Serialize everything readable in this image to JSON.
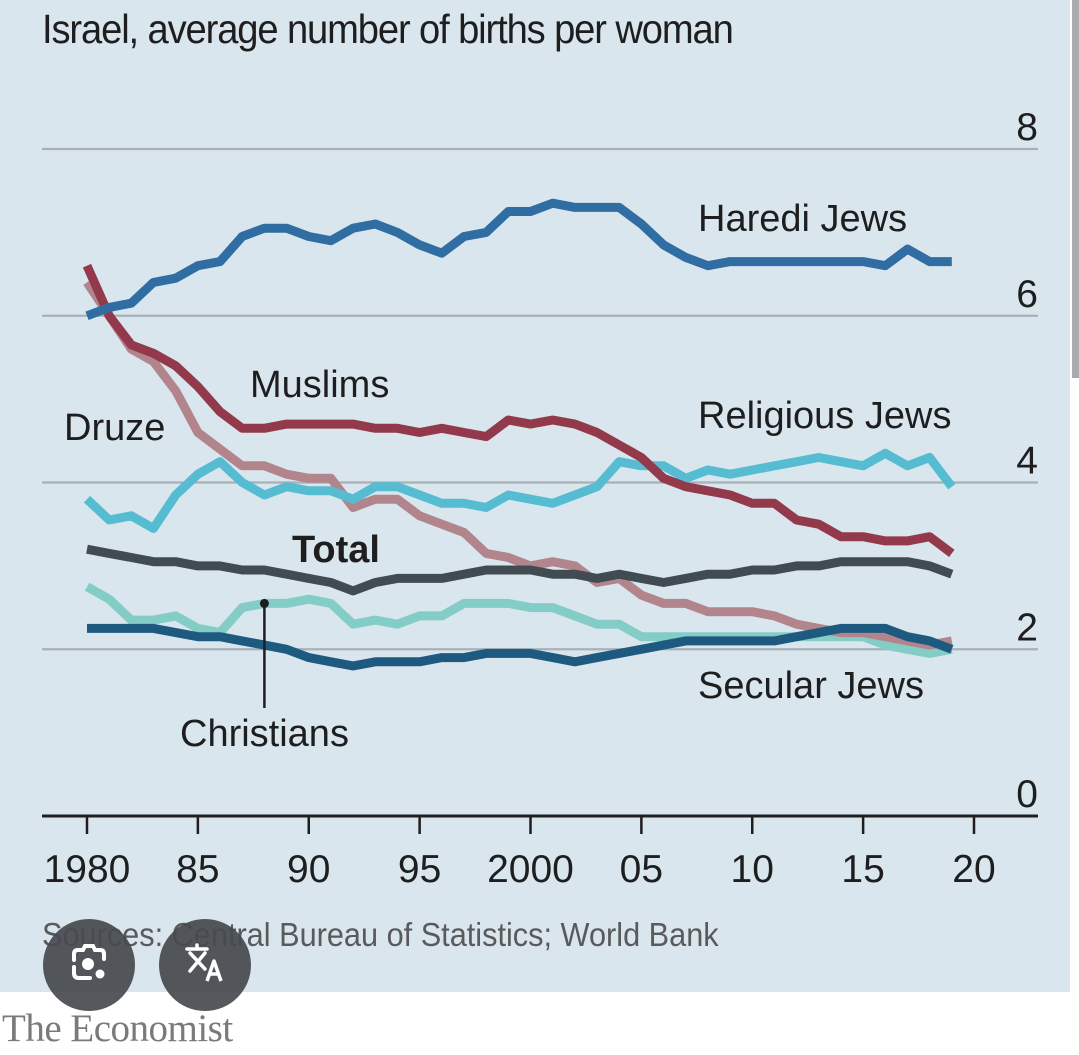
{
  "page": {
    "title": "Israel, average number of births per woman",
    "source": "Sources: Central Bureau of Statistics; World Bank",
    "brand": "The Economist"
  },
  "overlay": {
    "buttons": [
      {
        "name": "lens-button",
        "icon": "camera-lens-icon"
      },
      {
        "name": "translate-button",
        "icon": "translate-icon"
      }
    ]
  },
  "chart_data": {
    "type": "line",
    "title": "Israel, average number of births per woman",
    "xlabel": "",
    "ylabel": "",
    "xlim": [
      1980,
      2020
    ],
    "ylim": [
      0,
      8
    ],
    "grid": true,
    "y_axis_side": "right",
    "x_ticks": [
      1980,
      1985,
      1990,
      1995,
      2000,
      2005,
      2010,
      2015,
      2020
    ],
    "x_tick_labels": [
      "1980",
      "85",
      "90",
      "95",
      "2000",
      "05",
      "10",
      "15",
      "20"
    ],
    "y_ticks": [
      0,
      2,
      4,
      6,
      8
    ],
    "y_tick_labels": [
      "0",
      "2",
      "4",
      "6",
      "8"
    ],
    "x": [
      1980,
      1981,
      1982,
      1983,
      1984,
      1985,
      1986,
      1987,
      1988,
      1989,
      1990,
      1991,
      1992,
      1993,
      1994,
      1995,
      1996,
      1997,
      1998,
      1999,
      2000,
      2001,
      2002,
      2003,
      2004,
      2005,
      2006,
      2007,
      2008,
      2009,
      2010,
      2011,
      2012,
      2013,
      2014,
      2015,
      2016,
      2017,
      2018,
      2019
    ],
    "series": [
      {
        "name": "Haredi Jews",
        "label": "Haredi Jews",
        "color": "#2f6da3",
        "values": [
          6.0,
          6.1,
          6.15,
          6.4,
          6.45,
          6.6,
          6.65,
          6.95,
          7.05,
          7.05,
          6.95,
          6.9,
          7.05,
          7.1,
          7.0,
          6.85,
          6.75,
          6.95,
          7.0,
          7.25,
          7.25,
          7.35,
          7.3,
          7.3,
          7.3,
          7.1,
          6.85,
          6.7,
          6.6,
          6.65,
          6.65,
          6.65,
          6.65,
          6.65,
          6.65,
          6.65,
          6.6,
          6.8,
          6.65,
          6.65
        ]
      },
      {
        "name": "Muslims",
        "label": "Muslims",
        "color": "#923a4b",
        "values": [
          6.6,
          6.0,
          5.65,
          5.55,
          5.4,
          5.15,
          4.85,
          4.65,
          4.65,
          4.7,
          4.7,
          4.7,
          4.7,
          4.65,
          4.65,
          4.6,
          4.65,
          4.6,
          4.55,
          4.75,
          4.7,
          4.75,
          4.7,
          4.6,
          4.45,
          4.3,
          4.05,
          3.95,
          3.9,
          3.85,
          3.75,
          3.75,
          3.55,
          3.5,
          3.35,
          3.35,
          3.3,
          3.3,
          3.35,
          3.15
        ]
      },
      {
        "name": "Druze",
        "label": "Druze",
        "color": "#b2858d",
        "values": [
          6.4,
          6.0,
          5.6,
          5.45,
          5.1,
          4.6,
          4.4,
          4.2,
          4.2,
          4.1,
          4.05,
          4.05,
          3.7,
          3.8,
          3.8,
          3.6,
          3.5,
          3.4,
          3.15,
          3.1,
          3.0,
          3.05,
          3.0,
          2.8,
          2.85,
          2.65,
          2.55,
          2.55,
          2.45,
          2.45,
          2.45,
          2.4,
          2.3,
          2.25,
          2.2,
          2.2,
          2.15,
          2.1,
          2.05,
          2.1
        ]
      },
      {
        "name": "Religious Jews",
        "label": "Religious Jews",
        "color": "#56bcd2",
        "values": [
          3.8,
          3.55,
          3.6,
          3.45,
          3.85,
          4.1,
          4.25,
          4.0,
          3.85,
          3.95,
          3.9,
          3.9,
          3.8,
          3.95,
          3.95,
          3.85,
          3.75,
          3.75,
          3.7,
          3.85,
          3.8,
          3.75,
          3.85,
          3.95,
          4.25,
          4.2,
          4.2,
          4.05,
          4.15,
          4.1,
          4.15,
          4.2,
          4.25,
          4.3,
          4.25,
          4.2,
          4.35,
          4.2,
          4.3,
          3.95
        ]
      },
      {
        "name": "Total",
        "label": "Total",
        "color": "#404b52",
        "values": [
          3.2,
          3.15,
          3.1,
          3.05,
          3.05,
          3.0,
          3.0,
          2.95,
          2.95,
          2.9,
          2.85,
          2.8,
          2.7,
          2.8,
          2.85,
          2.85,
          2.85,
          2.9,
          2.95,
          2.95,
          2.95,
          2.9,
          2.9,
          2.85,
          2.9,
          2.85,
          2.8,
          2.85,
          2.9,
          2.9,
          2.95,
          2.95,
          3.0,
          3.0,
          3.05,
          3.05,
          3.05,
          3.05,
          3.0,
          2.9
        ]
      },
      {
        "name": "Christians",
        "label": "Christians",
        "color": "#84cdc6",
        "values": [
          2.75,
          2.6,
          2.35,
          2.35,
          2.4,
          2.25,
          2.2,
          2.5,
          2.55,
          2.55,
          2.6,
          2.55,
          2.3,
          2.35,
          2.3,
          2.4,
          2.4,
          2.55,
          2.55,
          2.55,
          2.5,
          2.5,
          2.4,
          2.3,
          2.3,
          2.15,
          2.15,
          2.15,
          2.15,
          2.15,
          2.15,
          2.15,
          2.15,
          2.15,
          2.15,
          2.15,
          2.05,
          2.0,
          1.95,
          2.0
        ]
      },
      {
        "name": "Secular Jews",
        "label": "Secular Jews",
        "color": "#1e5a80",
        "values": [
          2.25,
          2.25,
          2.25,
          2.25,
          2.2,
          2.15,
          2.15,
          2.1,
          2.05,
          2.0,
          1.9,
          1.85,
          1.8,
          1.85,
          1.85,
          1.85,
          1.9,
          1.9,
          1.95,
          1.95,
          1.95,
          1.9,
          1.85,
          1.9,
          1.95,
          2.0,
          2.05,
          2.1,
          2.1,
          2.1,
          2.1,
          2.1,
          2.15,
          2.2,
          2.25,
          2.25,
          2.25,
          2.15,
          2.1,
          2.0
        ]
      }
    ],
    "annotations": [
      {
        "text": "Haredi Jews",
        "series": "Haredi Jews"
      },
      {
        "text": "Muslims",
        "series": "Muslims"
      },
      {
        "text": "Druze",
        "series": "Druze"
      },
      {
        "text": "Religious Jews",
        "series": "Religious Jews"
      },
      {
        "text": "Total",
        "series": "Total",
        "bold": true
      },
      {
        "text": "Secular Jews",
        "series": "Secular Jews"
      },
      {
        "text": "Christians",
        "series": "Christians",
        "pointer_year": 1988
      }
    ],
    "legend": "inline labels"
  }
}
